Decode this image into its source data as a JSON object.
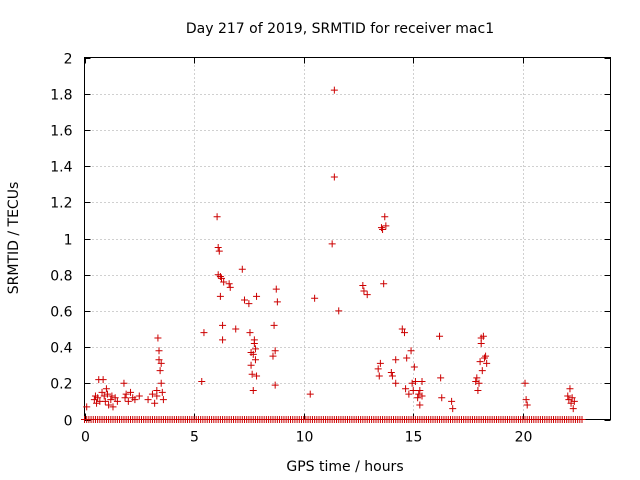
{
  "chart_data": {
    "type": "scatter",
    "title": "Day 217 of 2019, SRMTID for receiver mac1",
    "xlabel": "GPS time / hours",
    "ylabel": "SRMTID / TECUs",
    "xlim": [
      0,
      24
    ],
    "ylim": [
      0,
      2
    ],
    "xticks": [
      0,
      5,
      10,
      15,
      20
    ],
    "xtick_labels": [
      "0",
      "5",
      "10",
      "15",
      "20"
    ],
    "yticks": [
      0,
      0.2,
      0.4,
      0.6,
      0.8,
      1,
      1.2,
      1.4,
      1.6,
      1.8,
      2
    ],
    "ytick_labels": [
      "0",
      "0.2",
      "0.4",
      "0.6",
      "0.8",
      "1",
      "1.2",
      "1.4",
      "1.6",
      "1.8",
      "2"
    ],
    "grid": true,
    "marker": "+",
    "color": "#cc0000",
    "baseline": {
      "y": 0,
      "x_start": 0,
      "x_end": 22.7,
      "step": 0.1
    },
    "points": [
      [
        0.1,
        0.07
      ],
      [
        0.45,
        0.11
      ],
      [
        0.5,
        0.13
      ],
      [
        0.55,
        0.09
      ],
      [
        0.6,
        0.12
      ],
      [
        0.65,
        0.22
      ],
      [
        0.7,
        0.1
      ],
      [
        0.8,
        0.15
      ],
      [
        0.85,
        0.22
      ],
      [
        0.9,
        0.13
      ],
      [
        0.95,
        0.1
      ],
      [
        1.0,
        0.17
      ],
      [
        1.05,
        0.14
      ],
      [
        1.1,
        0.08
      ],
      [
        1.2,
        0.11
      ],
      [
        1.25,
        0.13
      ],
      [
        1.3,
        0.07
      ],
      [
        1.4,
        0.12
      ],
      [
        1.5,
        0.1
      ],
      [
        1.8,
        0.2
      ],
      [
        1.85,
        0.12
      ],
      [
        1.9,
        0.14
      ],
      [
        2.0,
        0.1
      ],
      [
        2.1,
        0.15
      ],
      [
        2.2,
        0.12
      ],
      [
        2.3,
        0.11
      ],
      [
        2.5,
        0.13
      ],
      [
        2.9,
        0.11
      ],
      [
        3.1,
        0.14
      ],
      [
        3.2,
        0.09
      ],
      [
        3.3,
        0.16
      ],
      [
        3.3,
        0.13
      ],
      [
        3.35,
        0.45
      ],
      [
        3.4,
        0.38
      ],
      [
        3.4,
        0.33
      ],
      [
        3.45,
        0.27
      ],
      [
        3.5,
        0.31
      ],
      [
        3.5,
        0.2
      ],
      [
        3.55,
        0.15
      ],
      [
        3.6,
        0.11
      ],
      [
        5.35,
        0.21
      ],
      [
        5.45,
        0.48
      ],
      [
        6.05,
        1.12
      ],
      [
        6.1,
        0.95
      ],
      [
        6.1,
        0.8
      ],
      [
        6.15,
        0.93
      ],
      [
        6.2,
        0.79
      ],
      [
        6.2,
        0.68
      ],
      [
        6.25,
        0.78
      ],
      [
        6.3,
        0.52
      ],
      [
        6.3,
        0.44
      ],
      [
        6.35,
        0.76
      ],
      [
        6.6,
        0.75
      ],
      [
        6.65,
        0.73
      ],
      [
        6.9,
        0.5
      ],
      [
        7.2,
        0.83
      ],
      [
        7.3,
        0.66
      ],
      [
        7.5,
        0.64
      ],
      [
        7.55,
        0.48
      ],
      [
        7.6,
        0.37
      ],
      [
        7.6,
        0.3
      ],
      [
        7.65,
        0.25
      ],
      [
        7.7,
        0.16
      ],
      [
        7.7,
        0.36
      ],
      [
        7.75,
        0.42
      ],
      [
        7.75,
        0.44
      ],
      [
        7.8,
        0.39
      ],
      [
        7.8,
        0.33
      ],
      [
        7.85,
        0.68
      ],
      [
        7.85,
        0.24
      ],
      [
        8.6,
        0.35
      ],
      [
        8.65,
        0.52
      ],
      [
        8.7,
        0.38
      ],
      [
        8.7,
        0.19
      ],
      [
        8.75,
        0.72
      ],
      [
        8.8,
        0.65
      ],
      [
        10.3,
        0.14
      ],
      [
        10.5,
        0.67
      ],
      [
        11.3,
        0.97
      ],
      [
        11.4,
        1.82
      ],
      [
        11.4,
        1.34
      ],
      [
        11.6,
        0.6
      ],
      [
        12.7,
        0.74
      ],
      [
        12.75,
        0.71
      ],
      [
        12.9,
        0.69
      ],
      [
        13.4,
        0.28
      ],
      [
        13.45,
        0.24
      ],
      [
        13.5,
        0.31
      ],
      [
        13.55,
        1.06
      ],
      [
        13.6,
        1.05
      ],
      [
        13.65,
        0.75
      ],
      [
        13.7,
        1.12
      ],
      [
        13.75,
        1.07
      ],
      [
        14.0,
        0.26
      ],
      [
        14.05,
        0.24
      ],
      [
        14.2,
        0.2
      ],
      [
        14.2,
        0.33
      ],
      [
        14.5,
        0.5
      ],
      [
        14.6,
        0.48
      ],
      [
        14.65,
        0.17
      ],
      [
        14.7,
        0.34
      ],
      [
        14.8,
        0.14
      ],
      [
        14.9,
        0.38
      ],
      [
        14.95,
        0.2
      ],
      [
        15.0,
        0.16
      ],
      [
        15.05,
        0.29
      ],
      [
        15.1,
        0.21
      ],
      [
        15.2,
        0.12
      ],
      [
        15.25,
        0.14
      ],
      [
        15.3,
        0.16
      ],
      [
        15.3,
        0.08
      ],
      [
        15.4,
        0.21
      ],
      [
        15.4,
        0.13
      ],
      [
        16.2,
        0.46
      ],
      [
        16.25,
        0.23
      ],
      [
        16.3,
        0.12
      ],
      [
        16.75,
        0.1
      ],
      [
        16.8,
        0.06
      ],
      [
        17.85,
        0.21
      ],
      [
        17.9,
        0.23
      ],
      [
        17.95,
        0.16
      ],
      [
        18.0,
        0.2
      ],
      [
        18.05,
        0.32
      ],
      [
        18.1,
        0.45
      ],
      [
        18.1,
        0.42
      ],
      [
        18.15,
        0.27
      ],
      [
        18.2,
        0.46
      ],
      [
        18.25,
        0.34
      ],
      [
        18.3,
        0.35
      ],
      [
        18.35,
        0.31
      ],
      [
        20.1,
        0.2
      ],
      [
        20.15,
        0.11
      ],
      [
        20.2,
        0.08
      ],
      [
        22.05,
        0.13
      ],
      [
        22.1,
        0.11
      ],
      [
        22.15,
        0.17
      ],
      [
        22.2,
        0.09
      ],
      [
        22.25,
        0.12
      ],
      [
        22.3,
        0.06
      ],
      [
        22.35,
        0.1
      ]
    ]
  }
}
